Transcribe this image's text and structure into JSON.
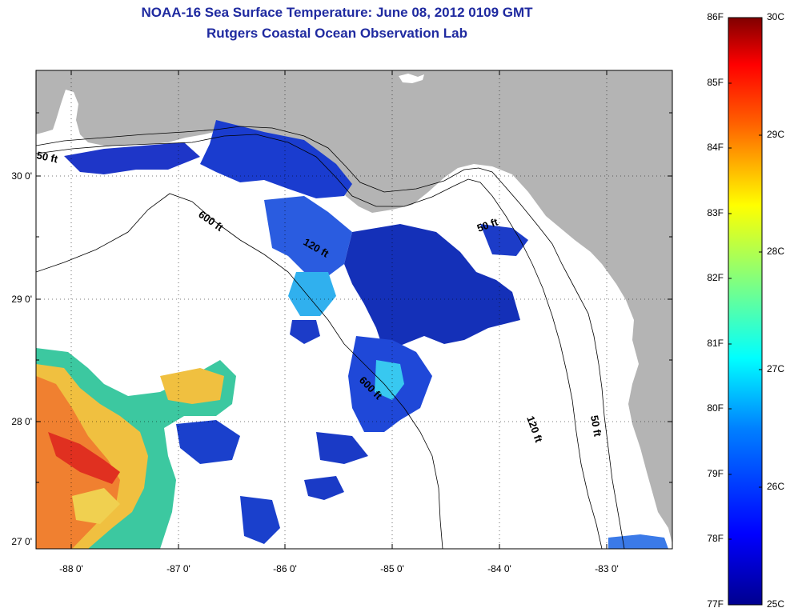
{
  "title": {
    "line1": "NOAA-16 Sea Surface Temperature:  June 08, 2012 0109 GMT",
    "line2": "Rutgers Coastal Ocean Observation Lab"
  },
  "map": {
    "lat_ticks": [
      "30 0'",
      "29 0'",
      "28 0'",
      "27 0'"
    ],
    "lon_ticks": [
      "-88 0'",
      "-87 0'",
      "-86 0'",
      "-85 0'",
      "-84 0'",
      "-83 0'"
    ],
    "contour_labels": [
      "50 ft",
      "600 ft",
      "120 ft",
      "50 ft",
      "600 ft",
      "120 ft",
      "50 ft"
    ]
  },
  "colorbar": {
    "fahrenheit_labels": [
      "86F",
      "85F",
      "84F",
      "83F",
      "82F",
      "81F",
      "80F",
      "79F",
      "78F",
      "77F"
    ],
    "celsius_labels": [
      "30C",
      "29C",
      "28C",
      "27C",
      "26C",
      "25C"
    ],
    "colors": {
      "c25": "#00008f",
      "c26": "#0050ff",
      "c27": "#00ffff",
      "c28": "#ffff00",
      "c29": "#ff5000",
      "c30": "#800000"
    }
  },
  "colors": {
    "land": "#b4b4b4",
    "ocean": "#ffffff",
    "title": "#1f2aa0"
  }
}
